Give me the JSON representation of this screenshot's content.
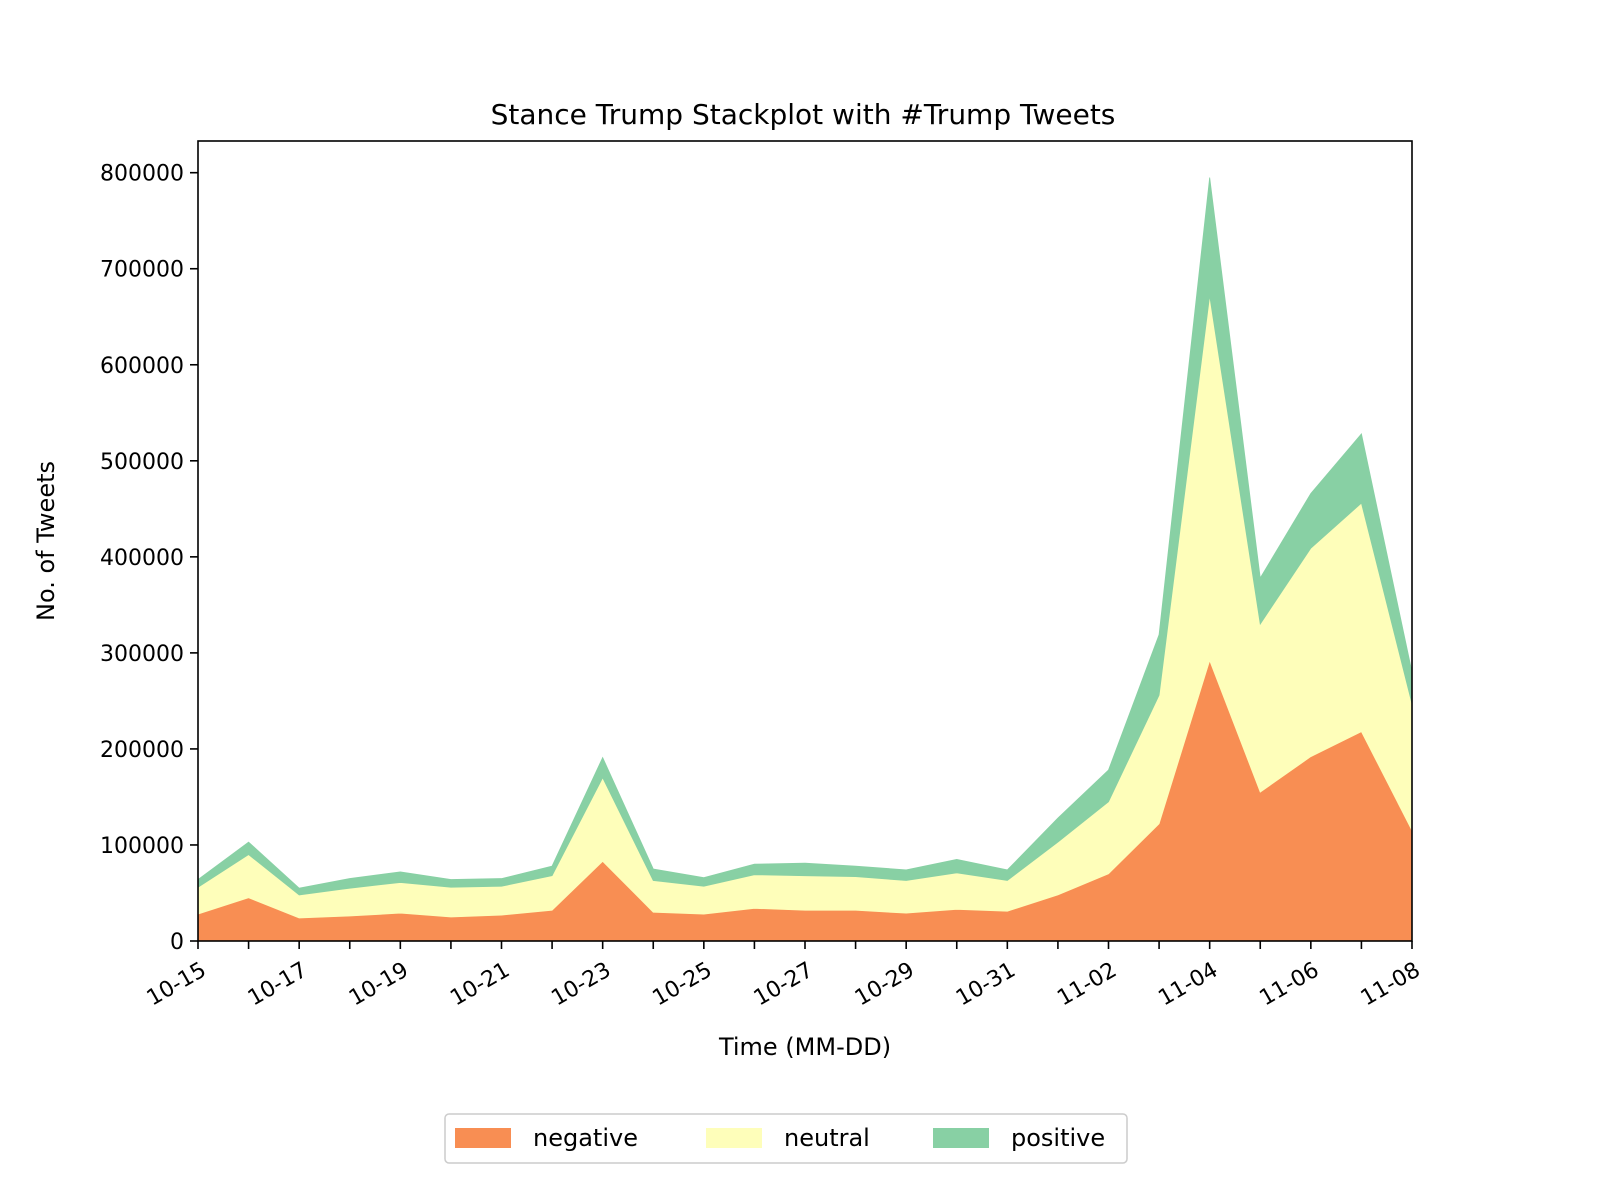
{
  "chart_data": {
    "type": "area",
    "stacked": true,
    "title": "Stance Trump Stackplot with #Trump Tweets",
    "xlabel": "Time (MM-DD)",
    "ylabel": "No. of Tweets",
    "x": [
      "10-15",
      "10-16",
      "10-17",
      "10-18",
      "10-19",
      "10-20",
      "10-21",
      "10-22",
      "10-23",
      "10-24",
      "10-25",
      "10-26",
      "10-27",
      "10-28",
      "10-29",
      "10-30",
      "10-31",
      "11-01",
      "11-02",
      "11-03",
      "11-04",
      "11-05",
      "11-06",
      "11-07",
      "11-08"
    ],
    "xticks": [
      "10-15",
      "10-17",
      "10-19",
      "10-21",
      "10-23",
      "10-25",
      "10-27",
      "10-29",
      "10-31",
      "11-02",
      "11-04",
      "11-06",
      "11-08"
    ],
    "ylim": [
      0,
      833000
    ],
    "yticks": [
      0,
      100000,
      200000,
      300000,
      400000,
      500000,
      600000,
      700000,
      800000
    ],
    "ytick_labels": [
      "0",
      "100000",
      "200000",
      "300000",
      "400000",
      "500000",
      "600000",
      "700000",
      "800000"
    ],
    "series": [
      {
        "name": "negative",
        "color": "#f88e53",
        "values": [
          28000,
          45000,
          24000,
          26000,
          29000,
          25000,
          27000,
          32000,
          83000,
          30000,
          28000,
          34000,
          32000,
          32000,
          29000,
          33000,
          31000,
          48000,
          70000,
          122000,
          292000,
          155000,
          192000,
          218000,
          115000
        ]
      },
      {
        "name": "neutral",
        "color": "#fefeba",
        "values": [
          28000,
          45000,
          24000,
          29000,
          32000,
          31000,
          30000,
          36000,
          87000,
          33000,
          29000,
          35000,
          36000,
          35000,
          34000,
          38000,
          32000,
          55000,
          75000,
          134000,
          380000,
          175000,
          217000,
          238000,
          132000
        ]
      },
      {
        "name": "positive",
        "color": "#88d0a4",
        "values": [
          8000,
          13000,
          7000,
          10000,
          11000,
          8000,
          8000,
          10000,
          21000,
          12000,
          9000,
          11000,
          13000,
          11000,
          11000,
          14000,
          11000,
          25000,
          33000,
          63000,
          123000,
          48000,
          57000,
          72000,
          33000
        ]
      }
    ],
    "legend_position": "bottom-center",
    "grid": false
  }
}
